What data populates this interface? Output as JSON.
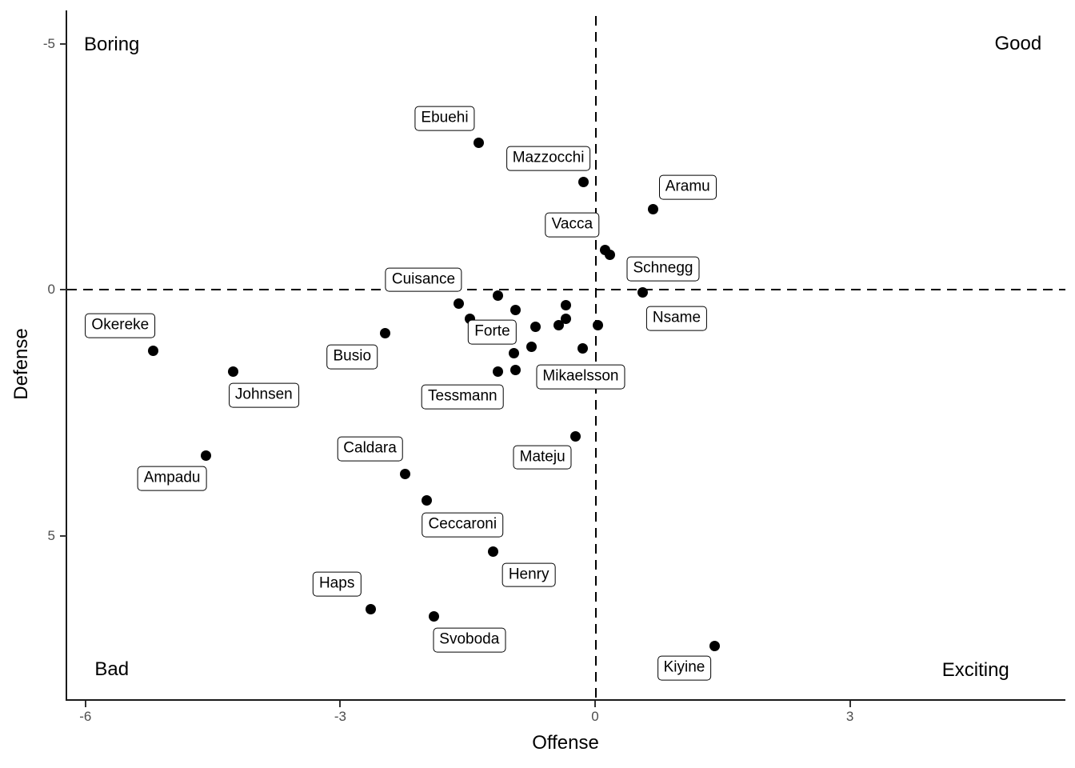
{
  "chart_data": {
    "type": "scatter",
    "title": "",
    "xlabel": "Offense",
    "ylabel": "Defense",
    "x_ticks": [
      -6,
      -3,
      0,
      3
    ],
    "y_ticks": [
      -5,
      0,
      5
    ],
    "xlim": [
      -6.2,
      5.5
    ],
    "ylim": [
      -5.6,
      8.3
    ],
    "y_axis_reversed": true,
    "grid": false,
    "legend": "none",
    "reference_lines": [
      {
        "axis": "x",
        "value": 0,
        "style": "dashed"
      },
      {
        "axis": "y",
        "value": 0,
        "style": "dashed"
      }
    ],
    "corner_annotations": [
      {
        "text": "Boring",
        "x": -5.69,
        "y": -4.98
      },
      {
        "text": "Good",
        "x": 4.98,
        "y": -4.99
      },
      {
        "text": "Bad",
        "x": -5.69,
        "y": 7.72
      },
      {
        "text": "Exciting",
        "x": 4.48,
        "y": 7.74
      }
    ],
    "points": [
      {
        "x": -1.37,
        "y": -2.98,
        "player": "Ebuehi"
      },
      {
        "x": -0.14,
        "y": -2.18,
        "player": "Mazzocchi"
      },
      {
        "x": 0.68,
        "y": -1.63,
        "player": "Aramu"
      },
      {
        "x": 0.12,
        "y": -0.81,
        "player": "Vacca"
      },
      {
        "x": 0.17,
        "y": -0.7,
        "player": ""
      },
      {
        "x": 0.56,
        "y": 0.05,
        "player": "Schnegg"
      },
      {
        "x": -1.61,
        "y": 0.29,
        "player": "Cuisance"
      },
      {
        "x": -1.14,
        "y": 0.13,
        "player": ""
      },
      {
        "x": -1.47,
        "y": 0.59,
        "player": "Forte"
      },
      {
        "x": -0.94,
        "y": 0.42,
        "player": ""
      },
      {
        "x": -0.34,
        "y": 0.31,
        "player": ""
      },
      {
        "x": -0.34,
        "y": 0.59,
        "player": ""
      },
      {
        "x": -0.7,
        "y": 0.76,
        "player": ""
      },
      {
        "x": -0.43,
        "y": 0.73,
        "player": ""
      },
      {
        "x": 0.03,
        "y": 0.72,
        "player": "Nsame"
      },
      {
        "x": -0.75,
        "y": 1.17,
        "player": ""
      },
      {
        "x": -0.15,
        "y": 1.19,
        "player": "Mikaelsson"
      },
      {
        "x": -0.96,
        "y": 1.3,
        "player": ""
      },
      {
        "x": -1.14,
        "y": 1.67,
        "player": "Tessmann"
      },
      {
        "x": -0.94,
        "y": 1.64,
        "player": ""
      },
      {
        "x": -5.2,
        "y": 1.24,
        "player": "Okereke"
      },
      {
        "x": -4.26,
        "y": 1.66,
        "player": "Johnsen"
      },
      {
        "x": -2.47,
        "y": 0.89,
        "player": "Busio"
      },
      {
        "x": -4.58,
        "y": 3.38,
        "player": "Ampadu"
      },
      {
        "x": -2.24,
        "y": 3.74,
        "player": "Caldara"
      },
      {
        "x": -0.23,
        "y": 2.99,
        "player": "Mateju"
      },
      {
        "x": -1.98,
        "y": 4.28,
        "player": "Ceccaroni"
      },
      {
        "x": -1.2,
        "y": 5.33,
        "player": "Henry"
      },
      {
        "x": -2.64,
        "y": 6.49,
        "player": "Haps"
      },
      {
        "x": -1.9,
        "y": 6.65,
        "player": "Svoboda"
      },
      {
        "x": 1.41,
        "y": 7.24,
        "player": "Kiyine"
      }
    ],
    "labels": [
      {
        "text": "Ebuehi",
        "x": -1.77,
        "y": -3.48
      },
      {
        "text": "Mazzocchi",
        "x": -0.55,
        "y": -2.67
      },
      {
        "text": "Aramu",
        "x": 1.09,
        "y": -2.08
      },
      {
        "text": "Vacca",
        "x": -0.27,
        "y": -1.32
      },
      {
        "text": "Schnegg",
        "x": 0.8,
        "y": -0.42
      },
      {
        "text": "Cuisance",
        "x": -2.02,
        "y": -0.2
      },
      {
        "text": "Nsame",
        "x": 0.96,
        "y": 0.59
      },
      {
        "text": "Okereke",
        "x": -5.59,
        "y": 0.73
      },
      {
        "text": "Forte",
        "x": -1.21,
        "y": 0.86
      },
      {
        "text": "Busio",
        "x": -2.86,
        "y": 1.37
      },
      {
        "text": "Johnsen",
        "x": -3.9,
        "y": 2.15
      },
      {
        "text": "Tessmann",
        "x": -1.56,
        "y": 2.18
      },
      {
        "text": "Mikaelsson",
        "x": -0.17,
        "y": 1.77
      },
      {
        "text": "Caldara",
        "x": -2.65,
        "y": 3.24
      },
      {
        "text": "Mateju",
        "x": -0.62,
        "y": 3.41
      },
      {
        "text": "Ampadu",
        "x": -4.98,
        "y": 3.84
      },
      {
        "text": "Ceccaroni",
        "x": -1.56,
        "y": 4.78
      },
      {
        "text": "Henry",
        "x": -0.78,
        "y": 5.8
      },
      {
        "text": "Haps",
        "x": -3.04,
        "y": 5.98
      },
      {
        "text": "Svoboda",
        "x": -1.48,
        "y": 7.12
      },
      {
        "text": "Kiyine",
        "x": 1.05,
        "y": 7.69
      }
    ]
  },
  "colors": {
    "background": "#ffffff",
    "point": "#000000",
    "label_border": "#000000",
    "label_background": "#ffffff",
    "text": "#000000",
    "tick_label": "#4d4d4d",
    "axis_line": "#1a1a1a"
  }
}
